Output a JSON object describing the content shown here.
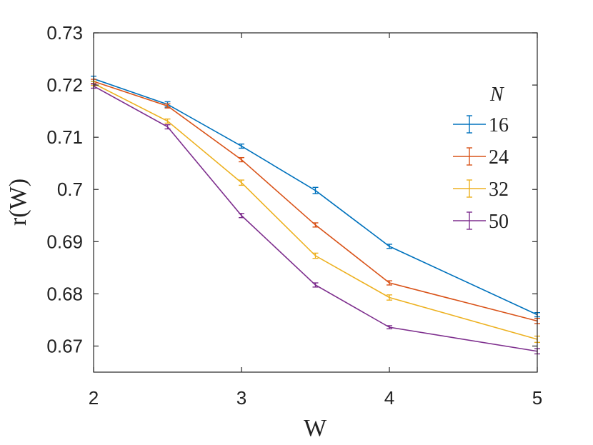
{
  "chart_data": {
    "type": "line",
    "xlabel": "W",
    "ylabel": "r(W)",
    "xlim": [
      2,
      5
    ],
    "ylim": [
      0.665,
      0.73
    ],
    "xticks": [
      2,
      3,
      4,
      5
    ],
    "xtick_labels": [
      "2",
      "3",
      "4",
      "5"
    ],
    "yticks": [
      0.67,
      0.68,
      0.69,
      0.7,
      0.71,
      0.72,
      0.73
    ],
    "ytick_labels": [
      "0.67",
      "0.68",
      "0.69",
      "0.7",
      "0.71",
      "0.72",
      "0.73"
    ],
    "x": [
      2,
      2.5,
      3,
      3.5,
      4,
      5
    ],
    "legend_title": "N",
    "legend_position": "right",
    "grid": false,
    "series": [
      {
        "name": "16",
        "color": "#0072BD",
        "values": [
          0.7212,
          0.7163,
          0.7083,
          0.6998,
          0.6891,
          0.676
        ],
        "errors": [
          0.0005,
          0.0005,
          0.0004,
          0.0006,
          0.0004,
          0.0004
        ]
      },
      {
        "name": "24",
        "color": "#D95319",
        "values": [
          0.7207,
          0.716,
          0.7057,
          0.6932,
          0.6821,
          0.6748
        ],
        "errors": [
          0.0004,
          0.0004,
          0.0004,
          0.0004,
          0.0004,
          0.0005
        ]
      },
      {
        "name": "32",
        "color": "#EDB120",
        "values": [
          0.7203,
          0.7131,
          0.7013,
          0.6873,
          0.6793,
          0.6713
        ],
        "errors": [
          0.0004,
          0.0004,
          0.0005,
          0.0005,
          0.0005,
          0.0006
        ]
      },
      {
        "name": "50",
        "color": "#7E2F8E",
        "values": [
          0.7198,
          0.712,
          0.695,
          0.6817,
          0.6736,
          0.669
        ],
        "errors": [
          0.0004,
          0.0004,
          0.0004,
          0.0004,
          0.0003,
          0.0005
        ]
      }
    ]
  }
}
